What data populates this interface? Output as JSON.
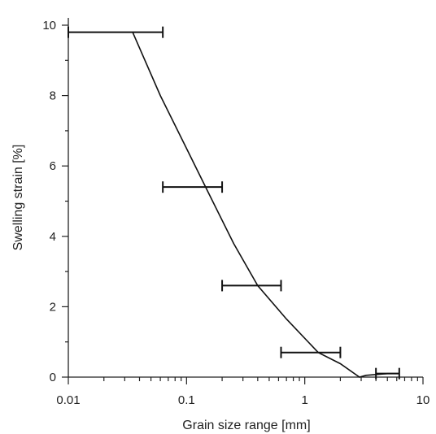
{
  "chart_data": {
    "type": "line",
    "xlabel": "Grain size range [mm]",
    "ylabel": "Swelling strain [%]",
    "xscale": "log",
    "xlim": [
      0.01,
      10
    ],
    "ylim": [
      0,
      10
    ],
    "grid": false,
    "x_ticks": [
      0.01,
      0.1,
      1,
      10
    ],
    "x_tick_labels": [
      "0.01",
      "0.1",
      "1",
      "10"
    ],
    "y_ticks": [
      0,
      2,
      4,
      6,
      8,
      10
    ],
    "y_tick_labels": [
      "0",
      "2",
      "4",
      "6",
      "8",
      "10"
    ],
    "curve": {
      "x": [
        0.035,
        0.06,
        0.1,
        0.15,
        0.25,
        0.4,
        0.7,
        1.3,
        2.0,
        2.9,
        3.3,
        5.0,
        6.3
      ],
      "y": [
        9.8,
        8.0,
        6.5,
        5.3,
        3.8,
        2.6,
        1.65,
        0.7,
        0.38,
        0.0,
        0.05,
        0.1,
        0.1
      ]
    },
    "grain_size_ranges": [
      {
        "x_min": 0.01,
        "x_max": 0.063,
        "y": 9.8
      },
      {
        "x_min": 0.063,
        "x_max": 0.2,
        "y": 5.4
      },
      {
        "x_min": 0.2,
        "x_max": 0.63,
        "y": 2.6
      },
      {
        "x_min": 0.63,
        "x_max": 2.0,
        "y": 0.7
      },
      {
        "x_min": 4.0,
        "x_max": 6.3,
        "y": 0.1
      }
    ]
  }
}
